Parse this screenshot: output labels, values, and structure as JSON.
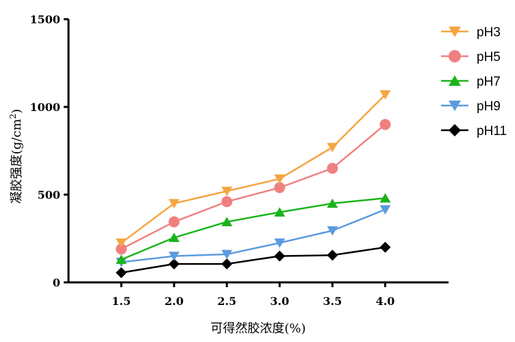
{
  "chart_data": {
    "type": "line",
    "x": [
      1.5,
      2.0,
      2.5,
      3.0,
      3.5,
      4.0
    ],
    "x_tick_labels": [
      "1.5",
      "2.0",
      "2.5",
      "3.0",
      "3.5",
      "4.0"
    ],
    "y_ticks": [
      0,
      500,
      1000,
      1500
    ],
    "y_tick_labels": [
      "0",
      "500",
      "1000",
      "1500"
    ],
    "xlim": [
      1.0,
      4.6
    ],
    "ylim": [
      0,
      1500
    ],
    "xlabel": "可得然胶浓度(%)",
    "ylabel": "凝胶强度(g/cm²)",
    "ylabel_main": "凝胶强度",
    "ylabel_unit_open": "(g/cm",
    "ylabel_unit_sup": "2",
    "ylabel_unit_close": ")",
    "legend_position": "top-right",
    "grid": false,
    "series": [
      {
        "name": "pH3",
        "color": "#f5a542",
        "marker": "triangle-down",
        "values": [
          225,
          450,
          520,
          590,
          770,
          1070
        ]
      },
      {
        "name": "pH5",
        "color": "#f08080",
        "marker": "circle",
        "values": [
          190,
          345,
          460,
          540,
          650,
          900
        ]
      },
      {
        "name": "pH7",
        "color": "#1ab41a",
        "marker": "triangle-up",
        "values": [
          130,
          255,
          345,
          400,
          450,
          480
        ]
      },
      {
        "name": "pH9",
        "color": "#5b9bdf",
        "marker": "triangle-down",
        "values": [
          115,
          150,
          160,
          225,
          295,
          415
        ]
      },
      {
        "name": "pH11",
        "color": "#000000",
        "marker": "diamond",
        "values": [
          55,
          105,
          105,
          150,
          155,
          200
        ]
      }
    ]
  }
}
